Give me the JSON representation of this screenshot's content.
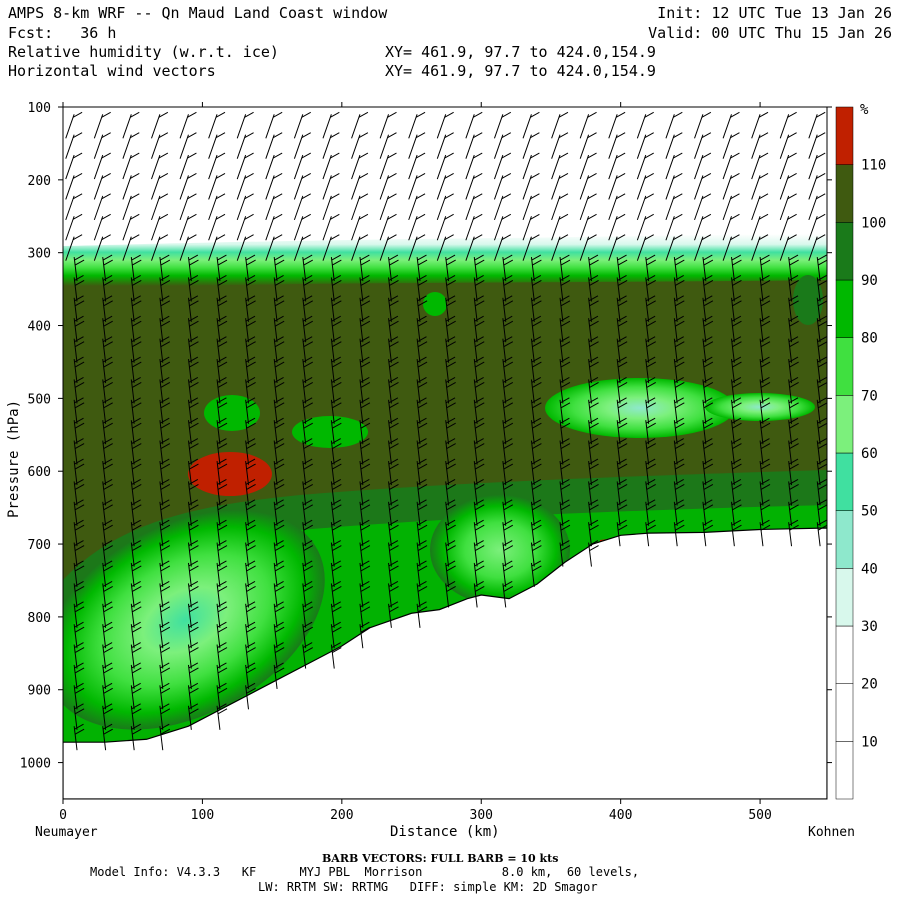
{
  "header": {
    "title": "AMPS 8-km WRF -- Qn Maud Land Coast window",
    "init": "Init: 12 UTC Tue 13 Jan 26",
    "fcst": "Fcst:   36 h",
    "valid": "Valid: 00 UTC Thu 15 Jan 26",
    "field1": "Relative humidity (w.r.t. ice)",
    "field1_xy": "XY= 461.9, 97.7 to 424.0,154.9",
    "field2": "Horizontal wind vectors",
    "field2_xy": "XY= 461.9, 97.7 to 424.0,154.9"
  },
  "footer": {
    "barb_note": "BARB VECTORS:  FULL BARB = 10 kts",
    "model_info": "Model Info: V4.3.3   KF      MYJ PBL  Morrison           8.0 km,  60 levels,",
    "model_info2": "LW: RRTM SW: RRTMG   DIFF: simple KM: 2D Smagor"
  },
  "chart_data": {
    "type": "heatmap",
    "title": "Relative humidity (w.r.t. ice)",
    "xlabel": "Distance (km)",
    "ylabel": "Pressure (hPa)",
    "x_ticks": [
      0,
      100,
      200,
      300,
      400,
      500
    ],
    "x_range": [
      0,
      548
    ],
    "y_ticks": [
      100,
      200,
      300,
      400,
      500,
      600,
      700,
      800,
      900,
      1000
    ],
    "y_range": [
      100,
      1050
    ],
    "x_start_label": "Neumayer",
    "x_end_label": "Kohnen",
    "colorbar": {
      "unit": "%",
      "levels": [
        10,
        20,
        30,
        40,
        50,
        60,
        70,
        80,
        90,
        100,
        110
      ],
      "colors": [
        "#ffffff",
        "#ffffff",
        "#ffffff",
        "#d8f8ec",
        "#8ee8cc",
        "#40e0a0",
        "#7cf07c",
        "#40e040",
        "#00b800",
        "#1a7a1a",
        "#3f5a10",
        "#c02000"
      ]
    },
    "terrain_profile": [
      [
        0,
        972
      ],
      [
        30,
        972
      ],
      [
        60,
        968
      ],
      [
        90,
        950
      ],
      [
        120,
        920
      ],
      [
        150,
        890
      ],
      [
        180,
        860
      ],
      [
        200,
        840
      ],
      [
        220,
        815
      ],
      [
        250,
        795
      ],
      [
        270,
        790
      ],
      [
        290,
        775
      ],
      [
        300,
        770
      ],
      [
        320,
        775
      ],
      [
        340,
        755
      ],
      [
        360,
        725
      ],
      [
        380,
        700
      ],
      [
        400,
        688
      ],
      [
        420,
        685
      ],
      [
        460,
        684
      ],
      [
        500,
        680
      ],
      [
        548,
        678
      ]
    ],
    "moist_layer_top_hPa": 275,
    "barb_note": "FULL BARB = 10 kts"
  },
  "colors": {
    "background": "#ffffff",
    "saturated": "#3f5a10",
    "supersaturated": "#c02000",
    "terrain": "#ffffff"
  }
}
